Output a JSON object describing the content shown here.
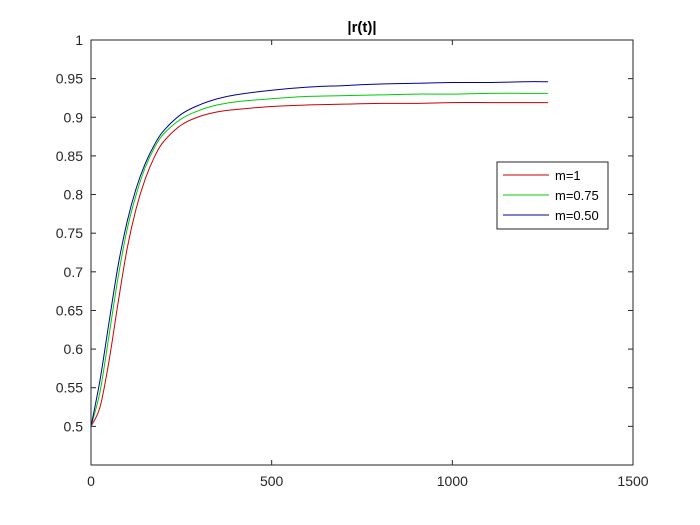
{
  "chart_data": {
    "type": "line",
    "title": "|r(t)|",
    "xlabel": "",
    "ylabel": "",
    "xlim": [
      0,
      1500
    ],
    "ylim": [
      0.45,
      1
    ],
    "xticks": [
      0,
      500,
      1000,
      1500
    ],
    "yticks": [
      0.5,
      0.55,
      0.6,
      0.65,
      0.7,
      0.75,
      0.8,
      0.85,
      0.9,
      0.95,
      1
    ],
    "grid": false,
    "legend_position": "right",
    "x": [
      0,
      25,
      50,
      75,
      100,
      125,
      150,
      175,
      200,
      250,
      300,
      350,
      400,
      500,
      600,
      700,
      800,
      900,
      1000,
      1100,
      1200,
      1265
    ],
    "series": [
      {
        "name": "m=1",
        "color": "#cc0000",
        "values": [
          0.5,
          0.525,
          0.585,
          0.66,
          0.73,
          0.782,
          0.82,
          0.848,
          0.868,
          0.89,
          0.901,
          0.907,
          0.91,
          0.914,
          0.916,
          0.917,
          0.918,
          0.918,
          0.919,
          0.919,
          0.919,
          0.919
        ]
      },
      {
        "name": "m=0.75",
        "color": "#00cc00",
        "values": [
          0.5,
          0.545,
          0.618,
          0.693,
          0.755,
          0.8,
          0.835,
          0.86,
          0.878,
          0.898,
          0.909,
          0.916,
          0.92,
          0.924,
          0.927,
          0.928,
          0.929,
          0.93,
          0.93,
          0.931,
          0.931,
          0.931
        ]
      },
      {
        "name": "m=0.50",
        "color": "#000099",
        "values": [
          0.5,
          0.56,
          0.635,
          0.708,
          0.765,
          0.808,
          0.84,
          0.864,
          0.882,
          0.904,
          0.916,
          0.924,
          0.929,
          0.935,
          0.939,
          0.941,
          0.943,
          0.944,
          0.945,
          0.945,
          0.946,
          0.946
        ]
      }
    ]
  }
}
